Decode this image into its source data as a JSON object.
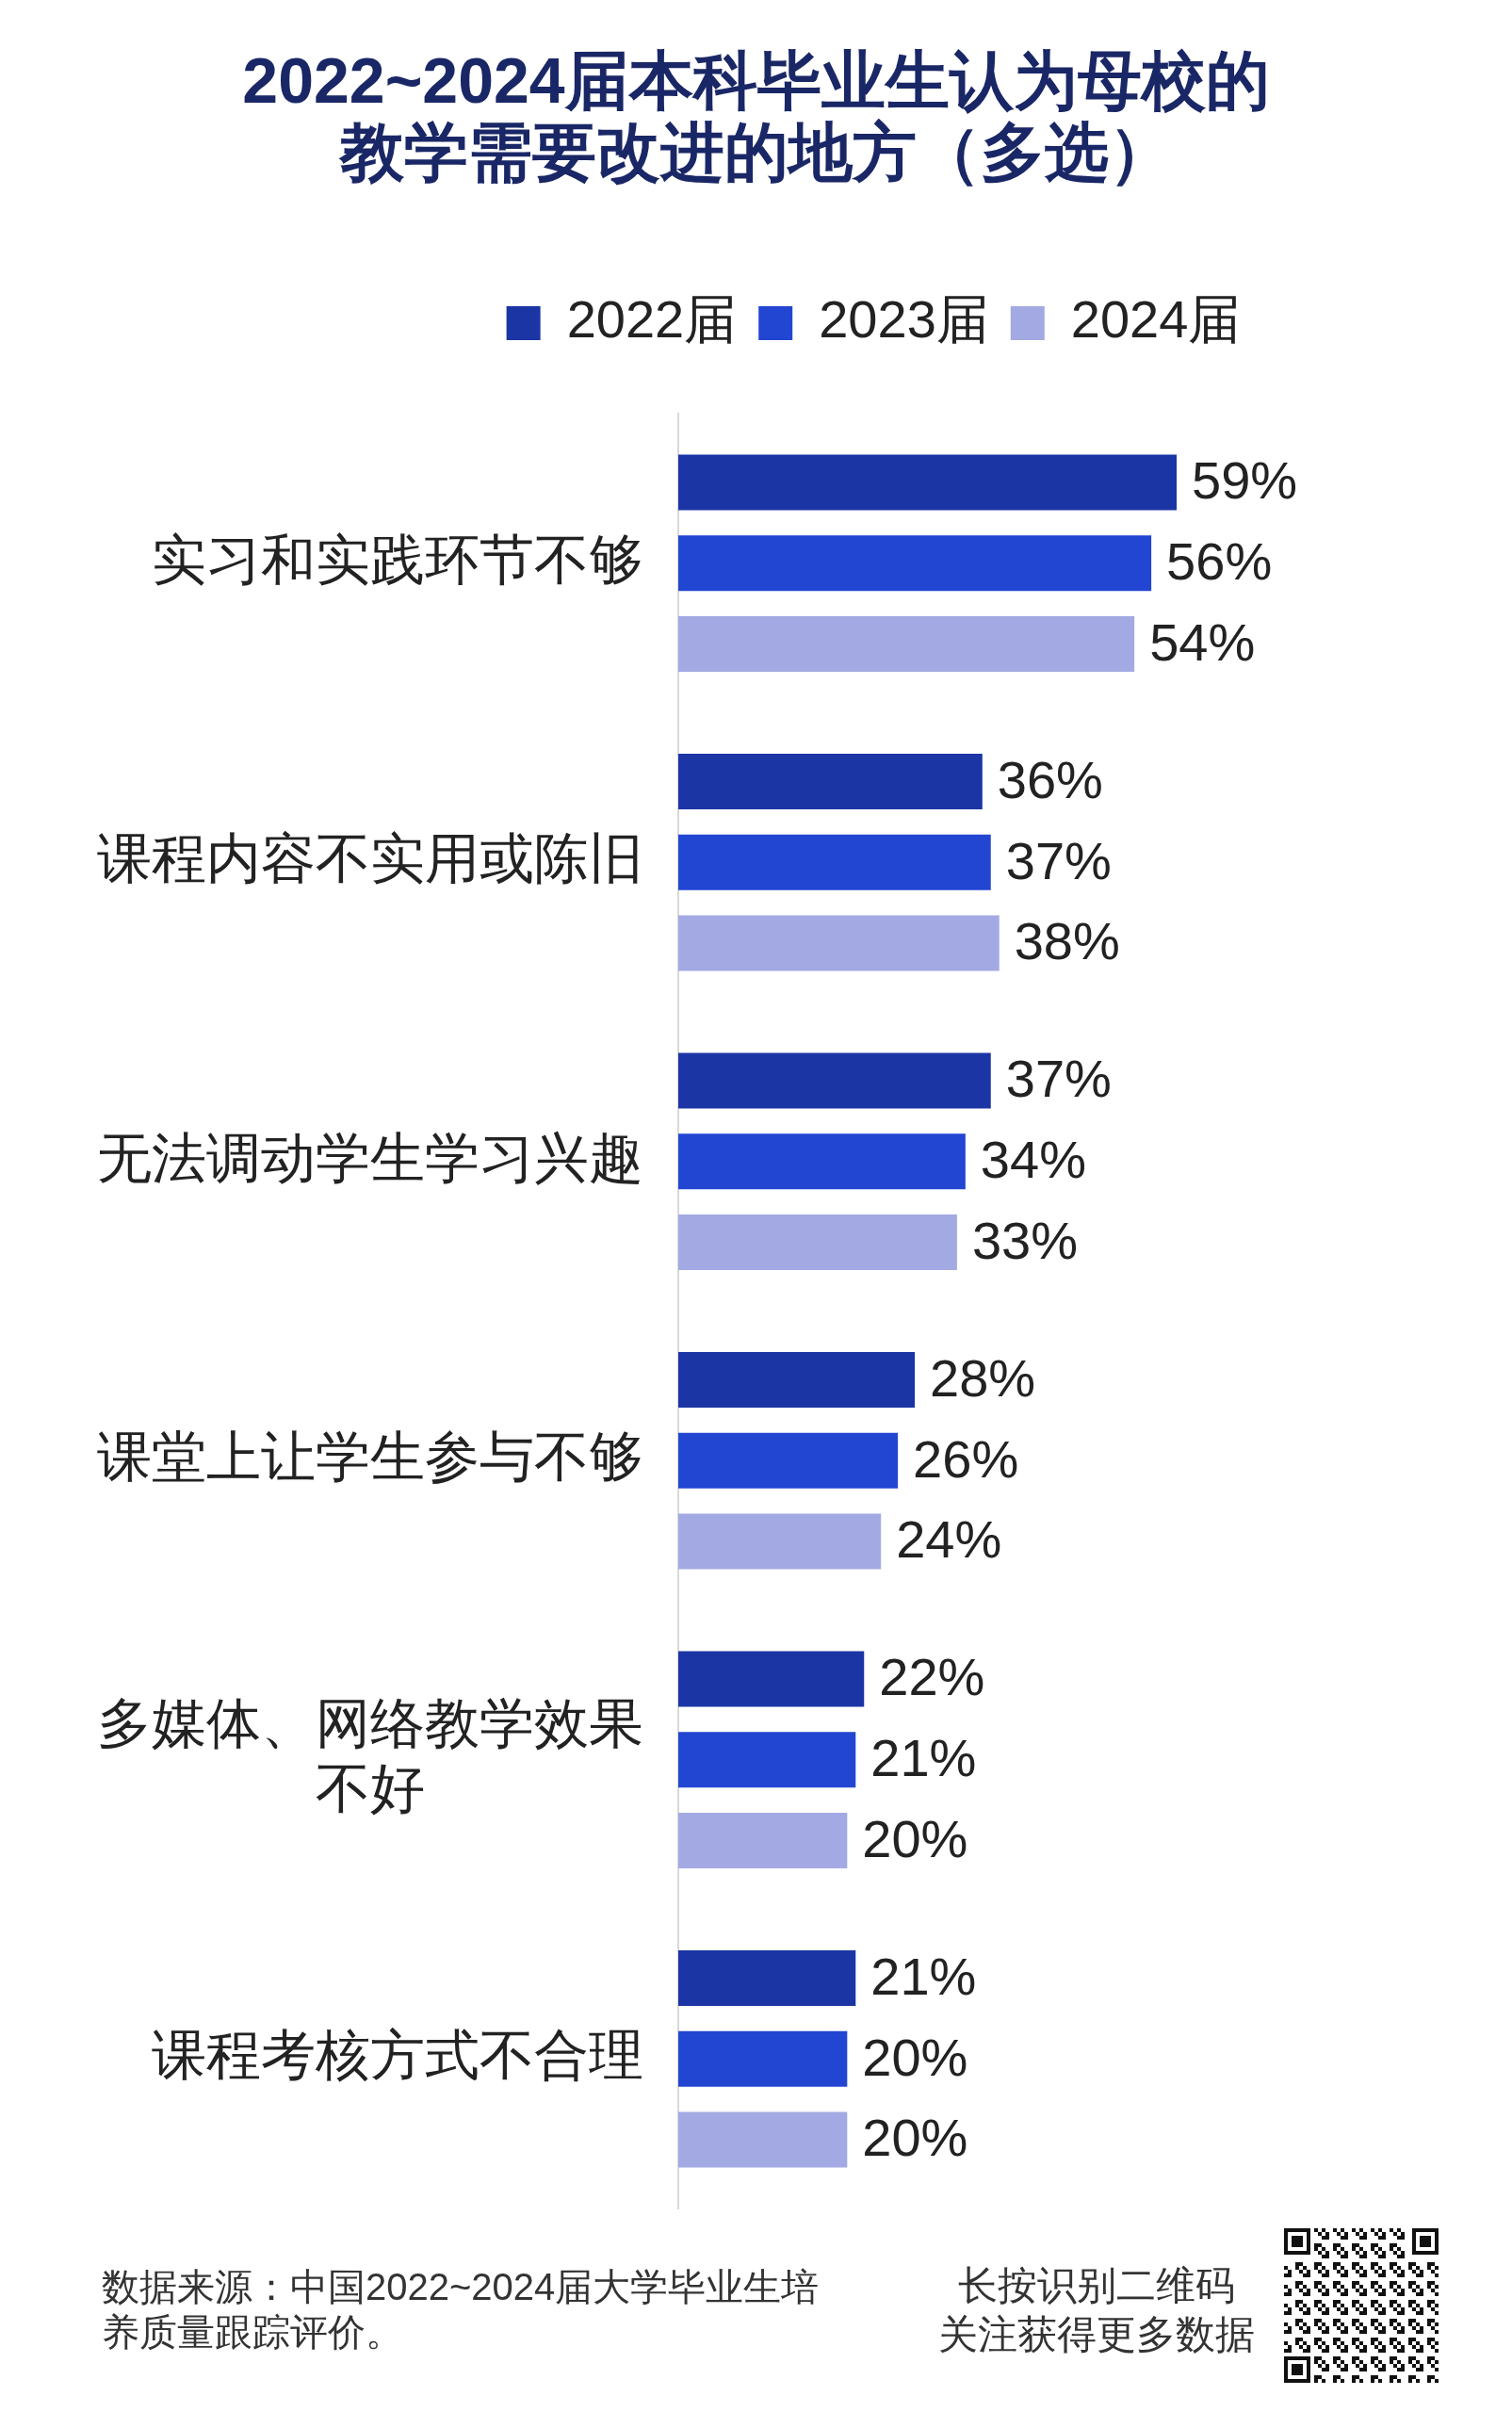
{
  "chart_data": {
    "type": "bar",
    "orientation": "horizontal",
    "title": "2022~2024届本科毕业生认为母校的教学需要改进的地方（多选）",
    "categories": [
      "实习和实践环节不够",
      "课程内容不实用或陈旧",
      "无法调动学生学习兴趣",
      "课堂上让学生参与不够",
      "多媒体、网络教学效果不好",
      "课程考核方式不合理"
    ],
    "series": [
      {
        "name": "2022届",
        "color": "#1b35a5",
        "values": [
          59,
          36,
          37,
          28,
          22,
          21
        ],
        "value_labels": [
          "59%",
          "36%",
          "37%",
          "28%",
          "22%",
          "21%"
        ]
      },
      {
        "name": "2023届",
        "color": "#2246d2",
        "values": [
          56,
          37,
          34,
          26,
          21,
          20
        ],
        "value_labels": [
          "56%",
          "37%",
          "34%",
          "26%",
          "21%",
          "20%"
        ]
      },
      {
        "name": "2024届",
        "color": "#a3aae3",
        "values": [
          54,
          38,
          33,
          24,
          20,
          20
        ],
        "value_labels": [
          "54%",
          "38%",
          "33%",
          "24%",
          "20%",
          "20%"
        ]
      }
    ],
    "legend": "top",
    "annotations": [
      "数据来源：中国2022~2024届大学毕业生培养质量跟踪评价。",
      "长按识别二维码",
      "关注获得更多数据"
    ]
  }
}
